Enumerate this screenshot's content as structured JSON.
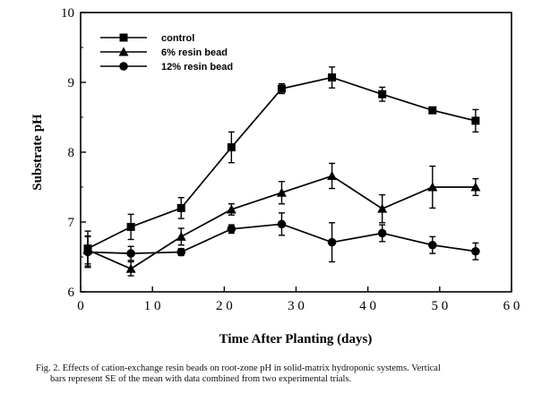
{
  "chart_data": {
    "type": "line",
    "xlabel": "Time After Planting (days)",
    "ylabel": "Substrate pH",
    "xlim": [
      0,
      60
    ],
    "ylim": [
      6,
      10
    ],
    "xticks": [
      0,
      10,
      20,
      30,
      40,
      50,
      60
    ],
    "xtick_labels": [
      "0",
      "1 0",
      "2 0",
      "3 0",
      "4 0",
      "5 0",
      "6 0"
    ],
    "yticks": [
      6,
      7,
      8,
      9,
      10
    ],
    "ytick_labels": [
      "6",
      "7",
      "8",
      "9",
      "10"
    ],
    "legend_position": "top-left",
    "grid": false,
    "series": [
      {
        "name": "control",
        "marker": "square",
        "x": [
          1,
          7,
          14,
          21,
          28,
          35,
          42,
          49,
          55
        ],
        "y": [
          6.62,
          6.93,
          7.2,
          8.07,
          8.91,
          9.07,
          8.83,
          8.6,
          8.45
        ],
        "err": [
          0.25,
          0.18,
          0.15,
          0.22,
          0.07,
          0.15,
          0.1,
          0.04,
          0.16
        ]
      },
      {
        "name": "6% resin bead",
        "marker": "triangle",
        "x": [
          1,
          7,
          14,
          21,
          28,
          35,
          42,
          49,
          55
        ],
        "y": [
          6.6,
          6.33,
          6.79,
          7.18,
          7.42,
          7.66,
          7.19,
          7.5,
          7.5
        ],
        "err": [
          0.2,
          0.1,
          0.12,
          0.08,
          0.16,
          0.18,
          0.2,
          0.3,
          0.12
        ]
      },
      {
        "name": "12% resin bead",
        "marker": "circle",
        "x": [
          1,
          7,
          14,
          21,
          28,
          35,
          42,
          49,
          55
        ],
        "y": [
          6.57,
          6.55,
          6.57,
          6.9,
          6.97,
          6.71,
          6.84,
          6.67,
          6.58
        ],
        "err": [
          0.22,
          0.1,
          0.05,
          0.06,
          0.16,
          0.28,
          0.12,
          0.12,
          0.12
        ]
      }
    ]
  },
  "caption": {
    "line1": "Fig. 2. Effects of cation-exchange resin beads on root-zone pH in solid-matrix hydroponic systems. Vertical",
    "line2": "bars represent SE of the mean with data combined from two experimental trials."
  }
}
